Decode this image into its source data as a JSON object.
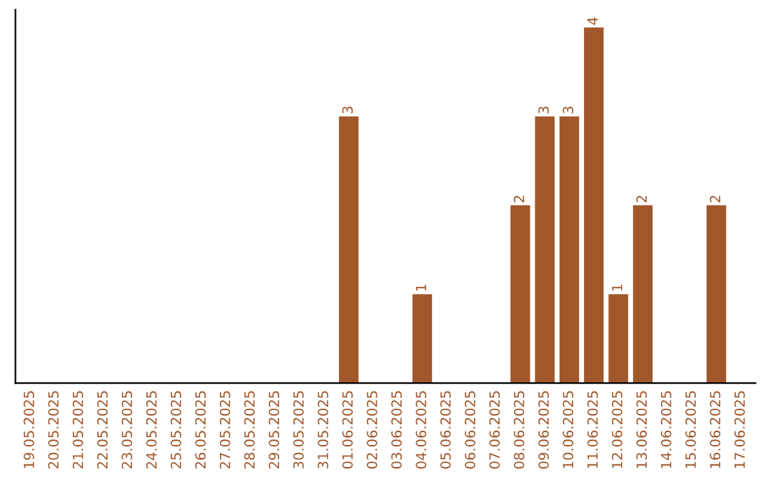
{
  "chart_data": {
    "type": "bar",
    "categories": [
      "19.05.2025",
      "20.05.2025",
      "21.05.2025",
      "22.05.2025",
      "23.05.2025",
      "24.05.2025",
      "25.05.2025",
      "26.05.2025",
      "27.05.2025",
      "28.05.2025",
      "29.05.2025",
      "30.05.2025",
      "31.05.2025",
      "01.06.2025",
      "02.06.2025",
      "03.06.2025",
      "04.06.2025",
      "05.06.2025",
      "06.06.2025",
      "07.06.2025",
      "08.06.2025",
      "09.06.2025",
      "10.06.2025",
      "11.06.2025",
      "12.06.2025",
      "13.06.2025",
      "14.06.2025",
      "15.06.2025",
      "16.06.2025",
      "17.06.2025"
    ],
    "values": [
      null,
      null,
      null,
      null,
      null,
      null,
      null,
      null,
      null,
      null,
      null,
      null,
      null,
      3,
      null,
      null,
      1,
      null,
      null,
      null,
      2,
      3,
      3,
      4,
      1,
      2,
      null,
      null,
      2,
      null
    ],
    "data_labels": true,
    "color": "#a0572a",
    "tick_labels": "x",
    "grid": false,
    "legend": false
  }
}
